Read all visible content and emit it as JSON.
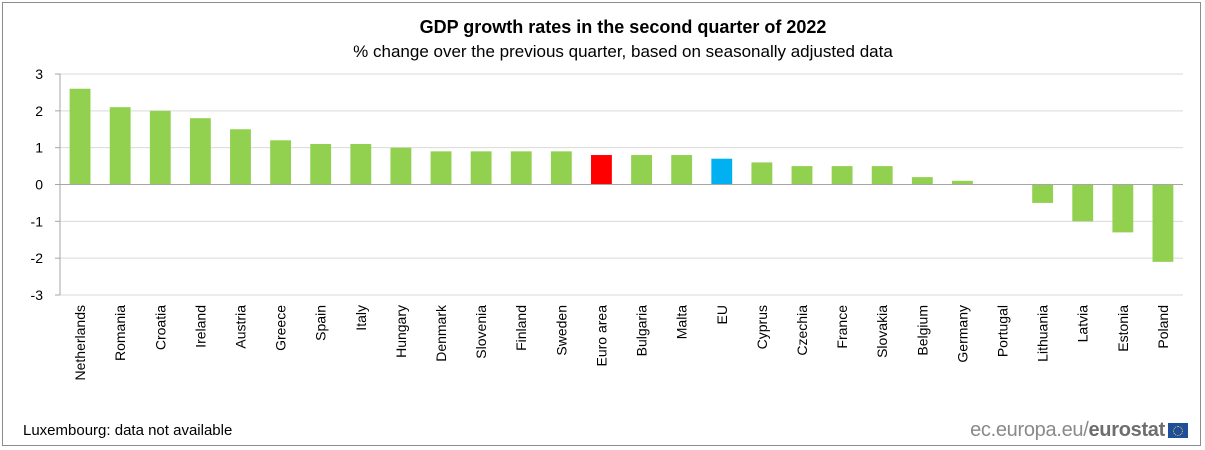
{
  "chart_data": {
    "type": "bar",
    "title": "GDP growth rates in the second quarter of 2022",
    "subtitle": "% change over the previous quarter, based on seasonally adjusted data",
    "categories": [
      "Netherlands",
      "Romania",
      "Croatia",
      "Ireland",
      "Austria",
      "Greece",
      "Spain",
      "Italy",
      "Hungary",
      "Denmark",
      "Slovenia",
      "Finland",
      "Sweden",
      "Euro area",
      "Bulgaria",
      "Malta",
      "EU",
      "Cyprus",
      "Czechia",
      "France",
      "Slovakia",
      "Belgium",
      "Germany",
      "Portugal",
      "Lithuania",
      "Latvia",
      "Estonia",
      "Poland"
    ],
    "values": [
      2.6,
      2.1,
      2.0,
      1.8,
      1.5,
      1.2,
      1.1,
      1.1,
      1.0,
      0.9,
      0.9,
      0.9,
      0.9,
      0.8,
      0.8,
      0.8,
      0.7,
      0.6,
      0.5,
      0.5,
      0.5,
      0.2,
      0.1,
      0.0,
      -0.5,
      -1.0,
      -1.3,
      -2.1
    ],
    "ylim": [
      -3,
      3
    ],
    "yticks": [
      3,
      2,
      1,
      0,
      -1,
      -2,
      -3
    ],
    "grid": true,
    "legend": "none",
    "colors": {
      "default": "#92d050",
      "Euro area": "#ff0000",
      "EU": "#00b0f0",
      "grid": "#d9d9d9",
      "axis": "#a6a6a6"
    }
  },
  "footnote": "Luxembourg: data not available",
  "brand": {
    "prefix": "ec.europa.eu/",
    "bold": "eurostat",
    "flag_icon": "eu-flag-icon"
  }
}
